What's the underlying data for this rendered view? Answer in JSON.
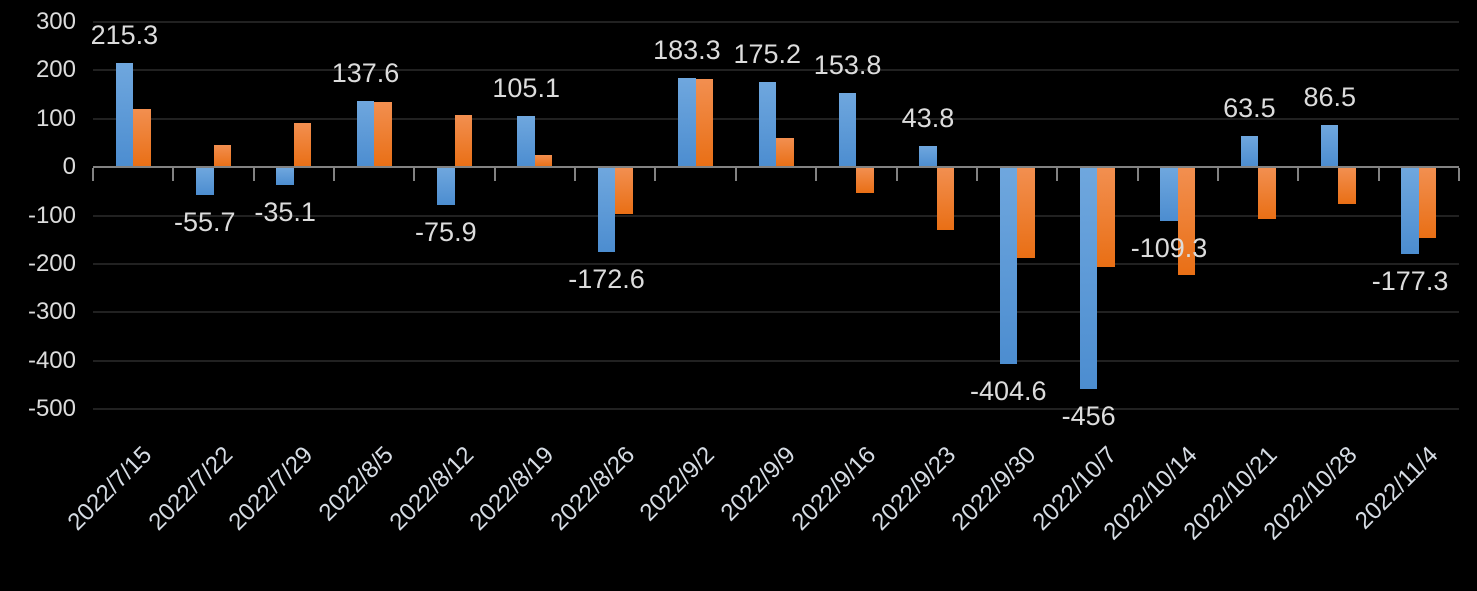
{
  "chart_data": {
    "type": "bar",
    "title": "",
    "legend": "none",
    "grid": true,
    "background_color": "#000000",
    "axis_color": "#828282",
    "gridline_color": "#212121",
    "text_color": "#DCDCDC",
    "x_label_color": "#D6DCE4",
    "ylim": [
      -500,
      300
    ],
    "yticks": [
      300,
      200,
      100,
      0,
      -100,
      -200,
      -300,
      -400,
      -500
    ],
    "categories": [
      "2022/7/15",
      "2022/7/22",
      "2022/7/29",
      "2022/8/5",
      "2022/8/12",
      "2022/8/19",
      "2022/8/26",
      "2022/9/2",
      "2022/9/9",
      "2022/9/16",
      "2022/9/23",
      "2022/9/30",
      "2022/10/7",
      "2022/10/14",
      "2022/10/21",
      "2022/10/28",
      "2022/11/4"
    ],
    "series": [
      {
        "name": "blue",
        "color": "#5B9BD5",
        "color_top": "#6FA7DE",
        "color_bottom": "#4C8DD0",
        "values": [
          215.3,
          -55.7,
          -35.1,
          137.6,
          -75.9,
          105.1,
          -172.6,
          183.3,
          175.2,
          153.8,
          43.8,
          -404.6,
          -456,
          -109.3,
          63.5,
          86.5,
          -177.3
        ]
      },
      {
        "name": "orange",
        "color": "#ED7D31",
        "color_top": "#F28F50",
        "color_bottom": "#E96F15",
        "values": [
          120,
          45,
          91,
          135,
          107,
          25,
          -94,
          183,
          60,
          -52,
          -128,
          -185,
          -204,
          -221,
          -106,
          -74,
          -145
        ]
      }
    ],
    "data_labels": [
      "215.3",
      "-55.7",
      "-35.1",
      "137.6",
      "-75.9",
      "105.1",
      "-172.6",
      "183.3",
      "175.2",
      "153.8",
      "43.8",
      "-404.6",
      "-456",
      "-109.3",
      "63.5",
      "86.5",
      "-177.3"
    ],
    "data_labels_series": "blue"
  }
}
